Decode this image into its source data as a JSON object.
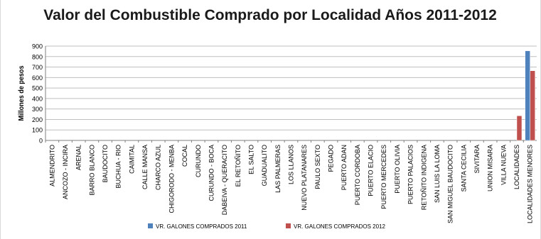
{
  "chart_data": {
    "type": "bar",
    "title": "Valor del Combustible Comprado por Localidad Años 2011-2012",
    "ylabel": "Millones de pesos",
    "xlabel": "",
    "ylim": [
      0,
      900
    ],
    "yticks": [
      0,
      100,
      200,
      300,
      400,
      500,
      600,
      700,
      800,
      900
    ],
    "grid": true,
    "legend_position": "bottom",
    "categories": [
      "ALMENDRITO",
      "ANCOZO - INCIRA",
      "ARENAL",
      "BARRO BLANCO",
      "BAUDOCITO",
      "BUCHUA - RIO",
      "CAIMITAL",
      "CALLE MANSA",
      "CHARCO AZUL",
      "CHIGORODO - MENBA",
      "COCAL",
      "CURUNDO",
      "CURUNDO - BOCA",
      "DABEIVA - QUERACITO",
      "EL RETOÑITO",
      "EL SALTO",
      "GUADUALITO",
      "LAS PALMERAS",
      "LOS LLANOS",
      "NUEVO PLATANARES",
      "PAULO SEXTO",
      "PEGADO",
      "PUERTO ADAN",
      "PUERTO CORDOBA",
      "PUERTO ELACIO",
      "PUERTO MERCEDES",
      "PUERTO OLIVIA",
      "PUERTO PALACIOS",
      "RETOÑITO INDIGENA",
      "SAN LUIS LA LOMA",
      "SAN MIGUEL BAUDOCITO",
      "SANTA CECILIA",
      "SIVITARA",
      "UNION MISARA",
      "VILLA NUEVA",
      "LOCALIDADES",
      "LOCALIDADES MENORES"
    ],
    "series": [
      {
        "name": "VR. GALONES COMPRADOS 2011",
        "color": "#4f81bd",
        "values": [
          0,
          0,
          0,
          0,
          0,
          0,
          0,
          0,
          0,
          0,
          0,
          0,
          0,
          0,
          0,
          0,
          0,
          0,
          0,
          0,
          0,
          0,
          0,
          0,
          0,
          0,
          0,
          0,
          0,
          0,
          0,
          0,
          0,
          0,
          0,
          0,
          855
        ]
      },
      {
        "name": "VR. GALONES COMPRADOS  2012",
        "color": "#c0504d",
        "values": [
          0,
          0,
          0,
          0,
          0,
          0,
          0,
          0,
          0,
          0,
          0,
          0,
          0,
          0,
          0,
          0,
          0,
          0,
          0,
          0,
          0,
          0,
          0,
          0,
          0,
          0,
          0,
          0,
          0,
          0,
          0,
          0,
          0,
          0,
          0,
          235,
          665
        ]
      }
    ]
  }
}
